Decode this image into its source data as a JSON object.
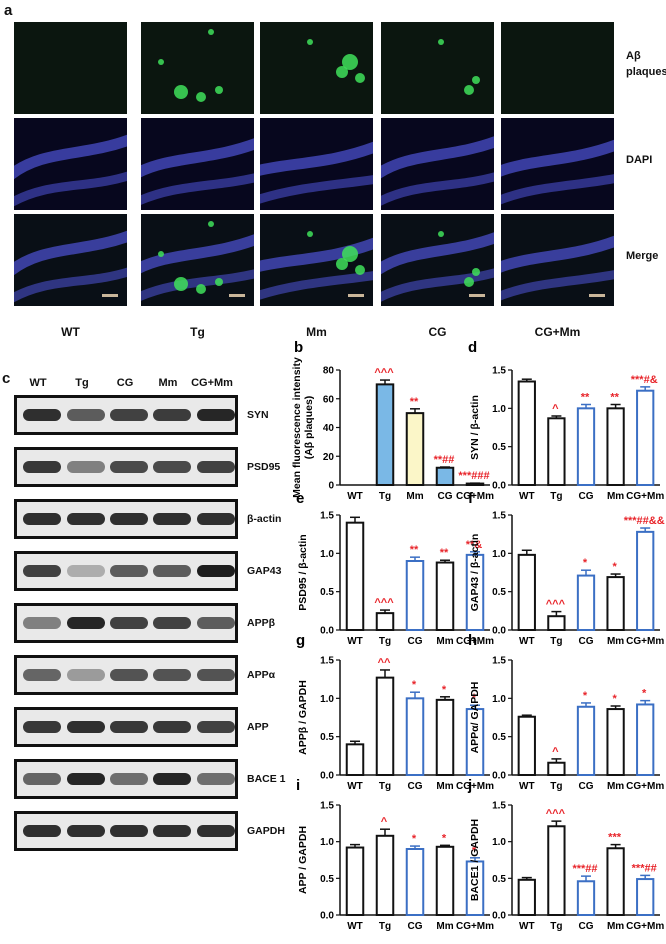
{
  "panel_letters": {
    "a": "a",
    "b": "b",
    "c": "c",
    "d": "d",
    "e": "e",
    "f": "f",
    "g": "g",
    "h": "h",
    "i": "i",
    "j": "j"
  },
  "fluorescence": {
    "row_labels": [
      "Aβ\nplaques",
      "DAPI",
      "Merge"
    ],
    "groups": [
      "WT",
      "Tg",
      "Mm",
      "CG",
      "CG+Mm"
    ],
    "colors": {
      "abeta": "#3fe05a",
      "dapi": "#4a4fc9"
    }
  },
  "western_blot": {
    "lanes": [
      "WT",
      "Tg",
      "CG",
      "Mm",
      "CG+Mm"
    ],
    "proteins": [
      "SYN",
      "PSD95",
      "β-actin",
      "GAP43",
      "APPβ",
      "APPα",
      "APP",
      "BACE 1",
      "GAPDH"
    ],
    "intensity": [
      [
        0.85,
        0.6,
        0.75,
        0.78,
        0.9
      ],
      [
        0.8,
        0.4,
        0.7,
        0.7,
        0.75
      ],
      [
        0.85,
        0.85,
        0.85,
        0.85,
        0.85
      ],
      [
        0.75,
        0.15,
        0.6,
        0.6,
        0.95
      ],
      [
        0.4,
        0.9,
        0.75,
        0.75,
        0.6
      ],
      [
        0.55,
        0.25,
        0.65,
        0.65,
        0.65
      ],
      [
        0.8,
        0.85,
        0.8,
        0.8,
        0.75
      ],
      [
        0.55,
        0.9,
        0.5,
        0.9,
        0.5
      ],
      [
        0.85,
        0.85,
        0.85,
        0.85,
        0.85
      ]
    ]
  },
  "chart_data": [
    {
      "id": "b",
      "type": "bar",
      "categories": [
        "WT",
        "Tg",
        "Mm",
        "CG",
        "CG+Mm"
      ],
      "values": [
        0,
        70,
        50,
        12,
        1
      ],
      "errors": [
        0,
        3,
        3,
        0.5,
        0.3
      ],
      "fills": [
        "#ffffff",
        "#7ab8e6",
        "#fbf6c8",
        "#7ab8e6",
        "#7ab8e6"
      ],
      "ylabel": "Mean fluorescence intensity (Aβ plaques)",
      "ylim": [
        0,
        80
      ],
      "yticks": [
        "0",
        "20",
        "40",
        "60",
        "80"
      ],
      "annotations": [
        "",
        "^^^",
        "**",
        "**##",
        "***###"
      ]
    },
    {
      "id": "d",
      "type": "bar",
      "categories": [
        "WT",
        "Tg",
        "CG",
        "Mm",
        "CG+Mm"
      ],
      "values": [
        1.35,
        0.87,
        1.0,
        1.0,
        1.23
      ],
      "errors": [
        0.03,
        0.03,
        0.05,
        0.05,
        0.05
      ],
      "ylabel": "SYN / β-actin",
      "ylim": [
        0,
        1.5
      ],
      "yticks": [
        "0.0",
        "0.5",
        "1.0",
        "1.5"
      ],
      "annotations": [
        "",
        "^",
        "**",
        "**",
        "***#&"
      ]
    },
    {
      "id": "e",
      "type": "bar",
      "categories": [
        "WT",
        "Tg",
        "CG",
        "Mm",
        "CG+Mm"
      ],
      "values": [
        1.4,
        0.22,
        0.9,
        0.88,
        0.98
      ],
      "errors": [
        0.07,
        0.04,
        0.05,
        0.03,
        0.04
      ],
      "ylabel": "PSD95 / β-actin",
      "ylim": [
        0,
        1.5
      ],
      "yticks": [
        "0.0",
        "0.5",
        "1.0",
        "1.5"
      ],
      "annotations": [
        "",
        "^^^",
        "**",
        "**",
        "**&"
      ]
    },
    {
      "id": "f",
      "type": "bar",
      "categories": [
        "WT",
        "Tg",
        "CG",
        "Mm",
        "CG+Mm"
      ],
      "values": [
        0.98,
        0.18,
        0.71,
        0.69,
        1.28
      ],
      "errors": [
        0.06,
        0.06,
        0.07,
        0.04,
        0.05
      ],
      "ylabel": "GAP43 / β-actin",
      "ylim": [
        0,
        1.5
      ],
      "yticks": [
        "0.0",
        "0.5",
        "1.0",
        "1.5"
      ],
      "annotations": [
        "",
        "^^^",
        "*",
        "*",
        "***##&&"
      ]
    },
    {
      "id": "g",
      "type": "bar",
      "categories": [
        "WT",
        "Tg",
        "CG",
        "Mm",
        "CG+Mm"
      ],
      "values": [
        0.4,
        1.27,
        1.0,
        0.98,
        0.86
      ],
      "errors": [
        0.04,
        0.1,
        0.08,
        0.04,
        0.05
      ],
      "ylabel": "APPβ / GAPDH",
      "ylim": [
        0,
        1.5
      ],
      "yticks": [
        "0.0",
        "0.5",
        "1.0",
        "1.5"
      ],
      "annotations": [
        "",
        "^^",
        "*",
        "*",
        "*"
      ]
    },
    {
      "id": "h",
      "type": "bar",
      "categories": [
        "WT",
        "Tg",
        "CG",
        "Mm",
        "CG+Mm"
      ],
      "values": [
        0.76,
        0.16,
        0.89,
        0.86,
        0.92
      ],
      "errors": [
        0.02,
        0.05,
        0.05,
        0.04,
        0.05
      ],
      "ylabel": "APPα/ GAPDH",
      "ylim": [
        0,
        1.5
      ],
      "yticks": [
        "0.0",
        "0.5",
        "1.0",
        "1.5"
      ],
      "annotations": [
        "",
        "^",
        "*",
        "*",
        "*"
      ]
    },
    {
      "id": "i",
      "type": "bar",
      "categories": [
        "WT",
        "Tg",
        "CG",
        "Mm",
        "CG+Mm"
      ],
      "values": [
        0.92,
        1.08,
        0.9,
        0.93,
        0.73
      ],
      "errors": [
        0.04,
        0.09,
        0.04,
        0.02,
        0.05
      ],
      "ylabel": "APP / GAPDH",
      "ylim": [
        0,
        1.5
      ],
      "yticks": [
        "0.0",
        "0.5",
        "1.0",
        "1.5"
      ],
      "annotations": [
        "",
        "^",
        "*",
        "*",
        "*"
      ]
    },
    {
      "id": "j",
      "type": "bar",
      "categories": [
        "WT",
        "Tg",
        "CG",
        "Mm",
        "CG+Mm"
      ],
      "values": [
        0.48,
        1.21,
        0.46,
        0.91,
        0.49
      ],
      "errors": [
        0.03,
        0.07,
        0.07,
        0.05,
        0.05
      ],
      "ylabel": "BACE1 / GAPDH",
      "ylim": [
        0,
        1.5
      ],
      "yticks": [
        "0.0",
        "0.5",
        "1.0",
        "1.5"
      ],
      "annotations": [
        "",
        "^^^",
        "***##",
        "***",
        "***##"
      ]
    }
  ],
  "colors": {
    "annotation": "#e8242a",
    "treated_bar_edge": "#3b6fc4",
    "control_bar_edge": "#111111"
  }
}
